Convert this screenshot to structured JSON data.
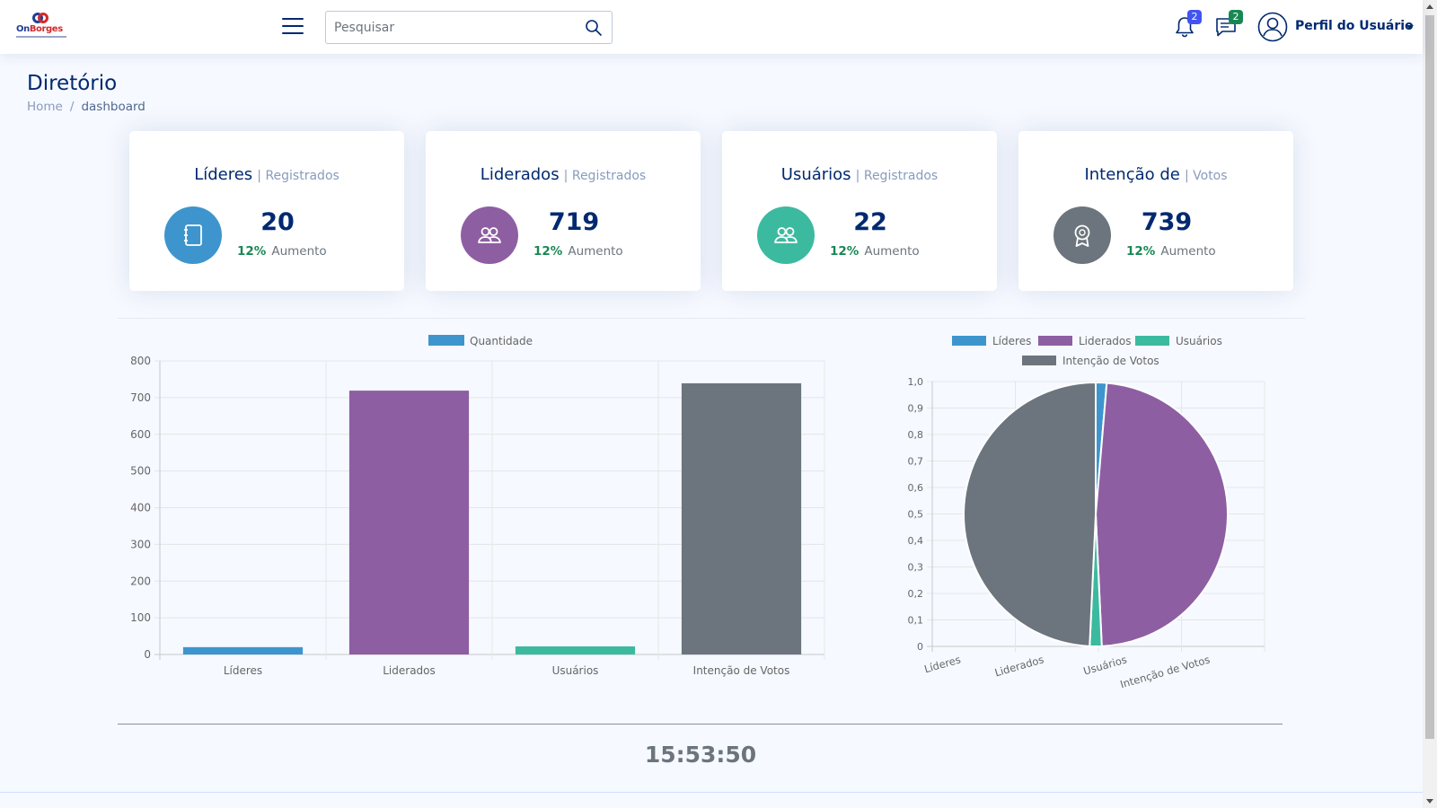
{
  "header": {
    "logo_text_a": "On",
    "logo_text_b": "Borges",
    "search_placeholder": "Pesquisar",
    "notifications_count": "2",
    "messages_count": "2",
    "profile_name": "Perfil do Usuário"
  },
  "page": {
    "title": "Diretório",
    "breadcrumb_home": "Home",
    "breadcrumb_sep": "/",
    "breadcrumb_current": "dashboard"
  },
  "cards": [
    {
      "title": "Líderes",
      "subtitle": "| Registrados",
      "value": "20",
      "pct": "12%",
      "inc_label": "Aumento",
      "icon": "journal-icon",
      "color": "#3e95cd"
    },
    {
      "title": "Liderados",
      "subtitle": "| Registrados",
      "value": "719",
      "pct": "12%",
      "inc_label": "Aumento",
      "icon": "people-icon",
      "color": "#8e5ea2"
    },
    {
      "title": "Usuários",
      "subtitle": "| Registrados",
      "value": "22",
      "pct": "12%",
      "inc_label": "Aumento",
      "icon": "people-icon",
      "color": "#3cba9f"
    },
    {
      "title": "Intenção de",
      "subtitle": "| Votos",
      "value": "739",
      "pct": "12%",
      "inc_label": "Aumento",
      "icon": "award-icon",
      "color": "#6c757d"
    }
  ],
  "clock": "15:53:50",
  "chart_data": [
    {
      "type": "bar",
      "categories": [
        "Líderes",
        "Liderados",
        "Usuários",
        "Intenção de Votos"
      ],
      "series": [
        {
          "name": "Quantidade",
          "values": [
            20,
            719,
            22,
            739
          ]
        }
      ],
      "colors": [
        "#3e95cd",
        "#8e5ea2",
        "#3cba9f",
        "#6c757d"
      ],
      "legend_color": "#3e95cd",
      "ylim": [
        0,
        800
      ],
      "yticks": [
        "0",
        "100",
        "200",
        "300",
        "400",
        "500",
        "600",
        "700",
        "800"
      ],
      "grid": true,
      "legend": "top"
    },
    {
      "type": "pie",
      "labels": [
        "Líderes",
        "Liderados",
        "Usuários",
        "Intenção de Votos"
      ],
      "values": [
        20,
        719,
        22,
        739
      ],
      "colors": [
        "#3e95cd",
        "#8e5ea2",
        "#3cba9f",
        "#6c757d"
      ],
      "ylim": [
        0,
        1
      ],
      "yticks": [
        "0",
        "0,1",
        "0,2",
        "0,3",
        "0,4",
        "0,5",
        "0,6",
        "0,7",
        "0,8",
        "0,9",
        "1,0"
      ],
      "xticks": [
        "Líderes",
        "Liderados",
        "Usuários",
        "Intenção de Votos"
      ],
      "grid": true,
      "legend": "top"
    }
  ]
}
